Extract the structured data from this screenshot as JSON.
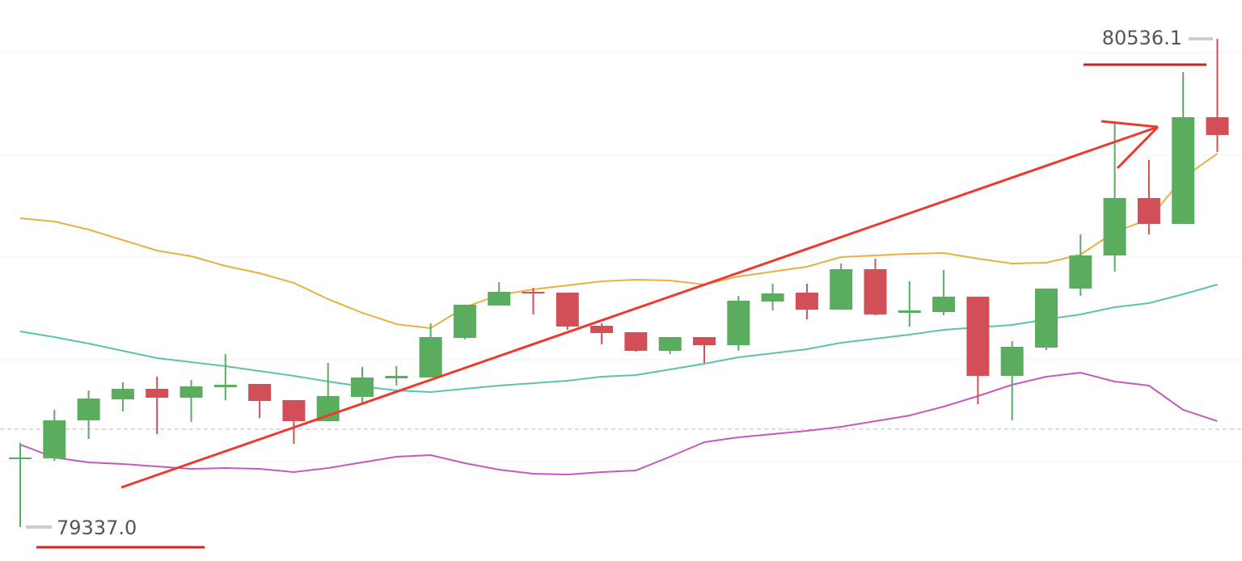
{
  "chart_data": {
    "type": "candlestick",
    "ylim": [
      79253.6,
      80631.4
    ],
    "up_color": "#5aac5f",
    "down_color": "#d24f58",
    "open": [
      79505.8,
      79505.8,
      79599.1,
      79650.7,
      79676.5,
      79654.6,
      79680.5,
      79688.4,
      79648.7,
      79597.1,
      79656.6,
      79702.3,
      79704.3,
      79801.6,
      79881.0,
      79914.7,
      79912.7,
      79831.3,
      79815.5,
      79769.8,
      79803.5,
      79783.7,
      79890.9,
      79912.7,
      79871.0,
      79970.3,
      79863.1,
      79865.1,
      79902.8,
      79708.3,
      79777.7,
      79922.7,
      80004.1,
      80145.0,
      80081.5,
      80343.5
    ],
    "high": [
      79543.5,
      79624.9,
      79672.5,
      79692.4,
      79706.3,
      79698.3,
      79761.9,
      79688.4,
      79648.7,
      79740.0,
      79730.1,
      79732.1,
      79837.3,
      79883.0,
      79938.5,
      79924.6,
      79912.7,
      79837.3,
      79815.5,
      79803.5,
      79803.5,
      79904.8,
      79934.6,
      79934.6,
      79984.2,
      79996.1,
      79940.5,
      79968.3,
      79902.8,
      79793.6,
      79922.7,
      80055.7,
      80329.6,
      80238.3,
      80454.7,
      80536.1
    ],
    "low": [
      79337.0,
      79499.8,
      79553.4,
      79620.9,
      79565.3,
      79595.1,
      79648.7,
      79605.0,
      79541.5,
      79597.1,
      79642.7,
      79684.4,
      79704.3,
      79797.6,
      79881.0,
      79859.1,
      79821.4,
      79785.7,
      79767.8,
      79761.9,
      79740.0,
      79769.8,
      79869.1,
      79847.2,
      79871.0,
      79857.1,
      79829.4,
      79857.1,
      79638.8,
      79599.1,
      79771.8,
      79904.8,
      79964.4,
      80055.7,
      80081.5,
      80258.2
    ],
    "close": [
      79507.7,
      79599.1,
      79652.7,
      79676.5,
      79654.6,
      79682.4,
      79686.4,
      79646.7,
      79597.1,
      79658.6,
      79704.3,
      79708.3,
      79803.5,
      79883.0,
      79914.7,
      79910.8,
      79829.4,
      79813.5,
      79769.8,
      79803.5,
      79783.7,
      79892.9,
      79910.8,
      79871.0,
      79970.3,
      79859.1,
      79869.1,
      79902.8,
      79708.3,
      79779.7,
      79922.7,
      80004.1,
      80145.0,
      80081.5,
      80343.5,
      80299.9
    ],
    "lines": [
      {
        "color": "#e8b13f",
        "values": [
          80095.4,
          80087.4,
          80067.6,
          80041.8,
          80016.0,
          80002.1,
          79978.3,
          79960.4,
          79936.6,
          79896.9,
          79863.1,
          79835.3,
          79825.4,
          79877.0,
          79906.8,
          79920.7,
          79930.6,
          79940.5,
          79944.5,
          79942.5,
          79932.6,
          79952.4,
          79964.4,
          79976.3,
          80000.1,
          80004.1,
          80008.0,
          80010.0,
          79996.1,
          79984.2,
          79986.2,
          80006.0,
          80061.6,
          80093.4,
          80194.6,
          80254.2
        ]
      },
      {
        "color": "#5dc1ac",
        "values": [
          79817.4,
          79803.5,
          79787.7,
          79769.8,
          79751.9,
          79742.0,
          79732.1,
          79720.2,
          79708.3,
          79694.4,
          79682.4,
          79672.5,
          79668.5,
          79676.5,
          79684.4,
          79690.4,
          79696.3,
          79706.3,
          79710.2,
          79724.1,
          79738.0,
          79753.9,
          79763.8,
          79773.8,
          79789.6,
          79799.6,
          79809.5,
          79821.4,
          79827.4,
          79833.3,
          79847.2,
          79859.1,
          79877.0,
          79886.9,
          79908.8,
          79932.6
        ]
      },
      {
        "color": "#c05bbf",
        "values": [
          79539.5,
          79507.7,
          79495.8,
          79491.9,
          79485.9,
          79479.9,
          79481.9,
          79479.9,
          79472.0,
          79481.9,
          79495.8,
          79509.7,
          79513.7,
          79493.8,
          79478.0,
          79468.0,
          79466.1,
          79472.0,
          79476.0,
          79509.7,
          79545.5,
          79557.4,
          79565.3,
          79573.3,
          79583.2,
          79597.1,
          79611.0,
          79632.8,
          79658.6,
          79686.4,
          79706.3,
          79716.2,
          79694.4,
          79684.4,
          79624.9,
          79597.1
        ]
      }
    ],
    "max_label": {
      "value": 80536.1,
      "label": "80536.1"
    },
    "min_label": {
      "value": 79337.0,
      "label": "79337.0"
    }
  }
}
